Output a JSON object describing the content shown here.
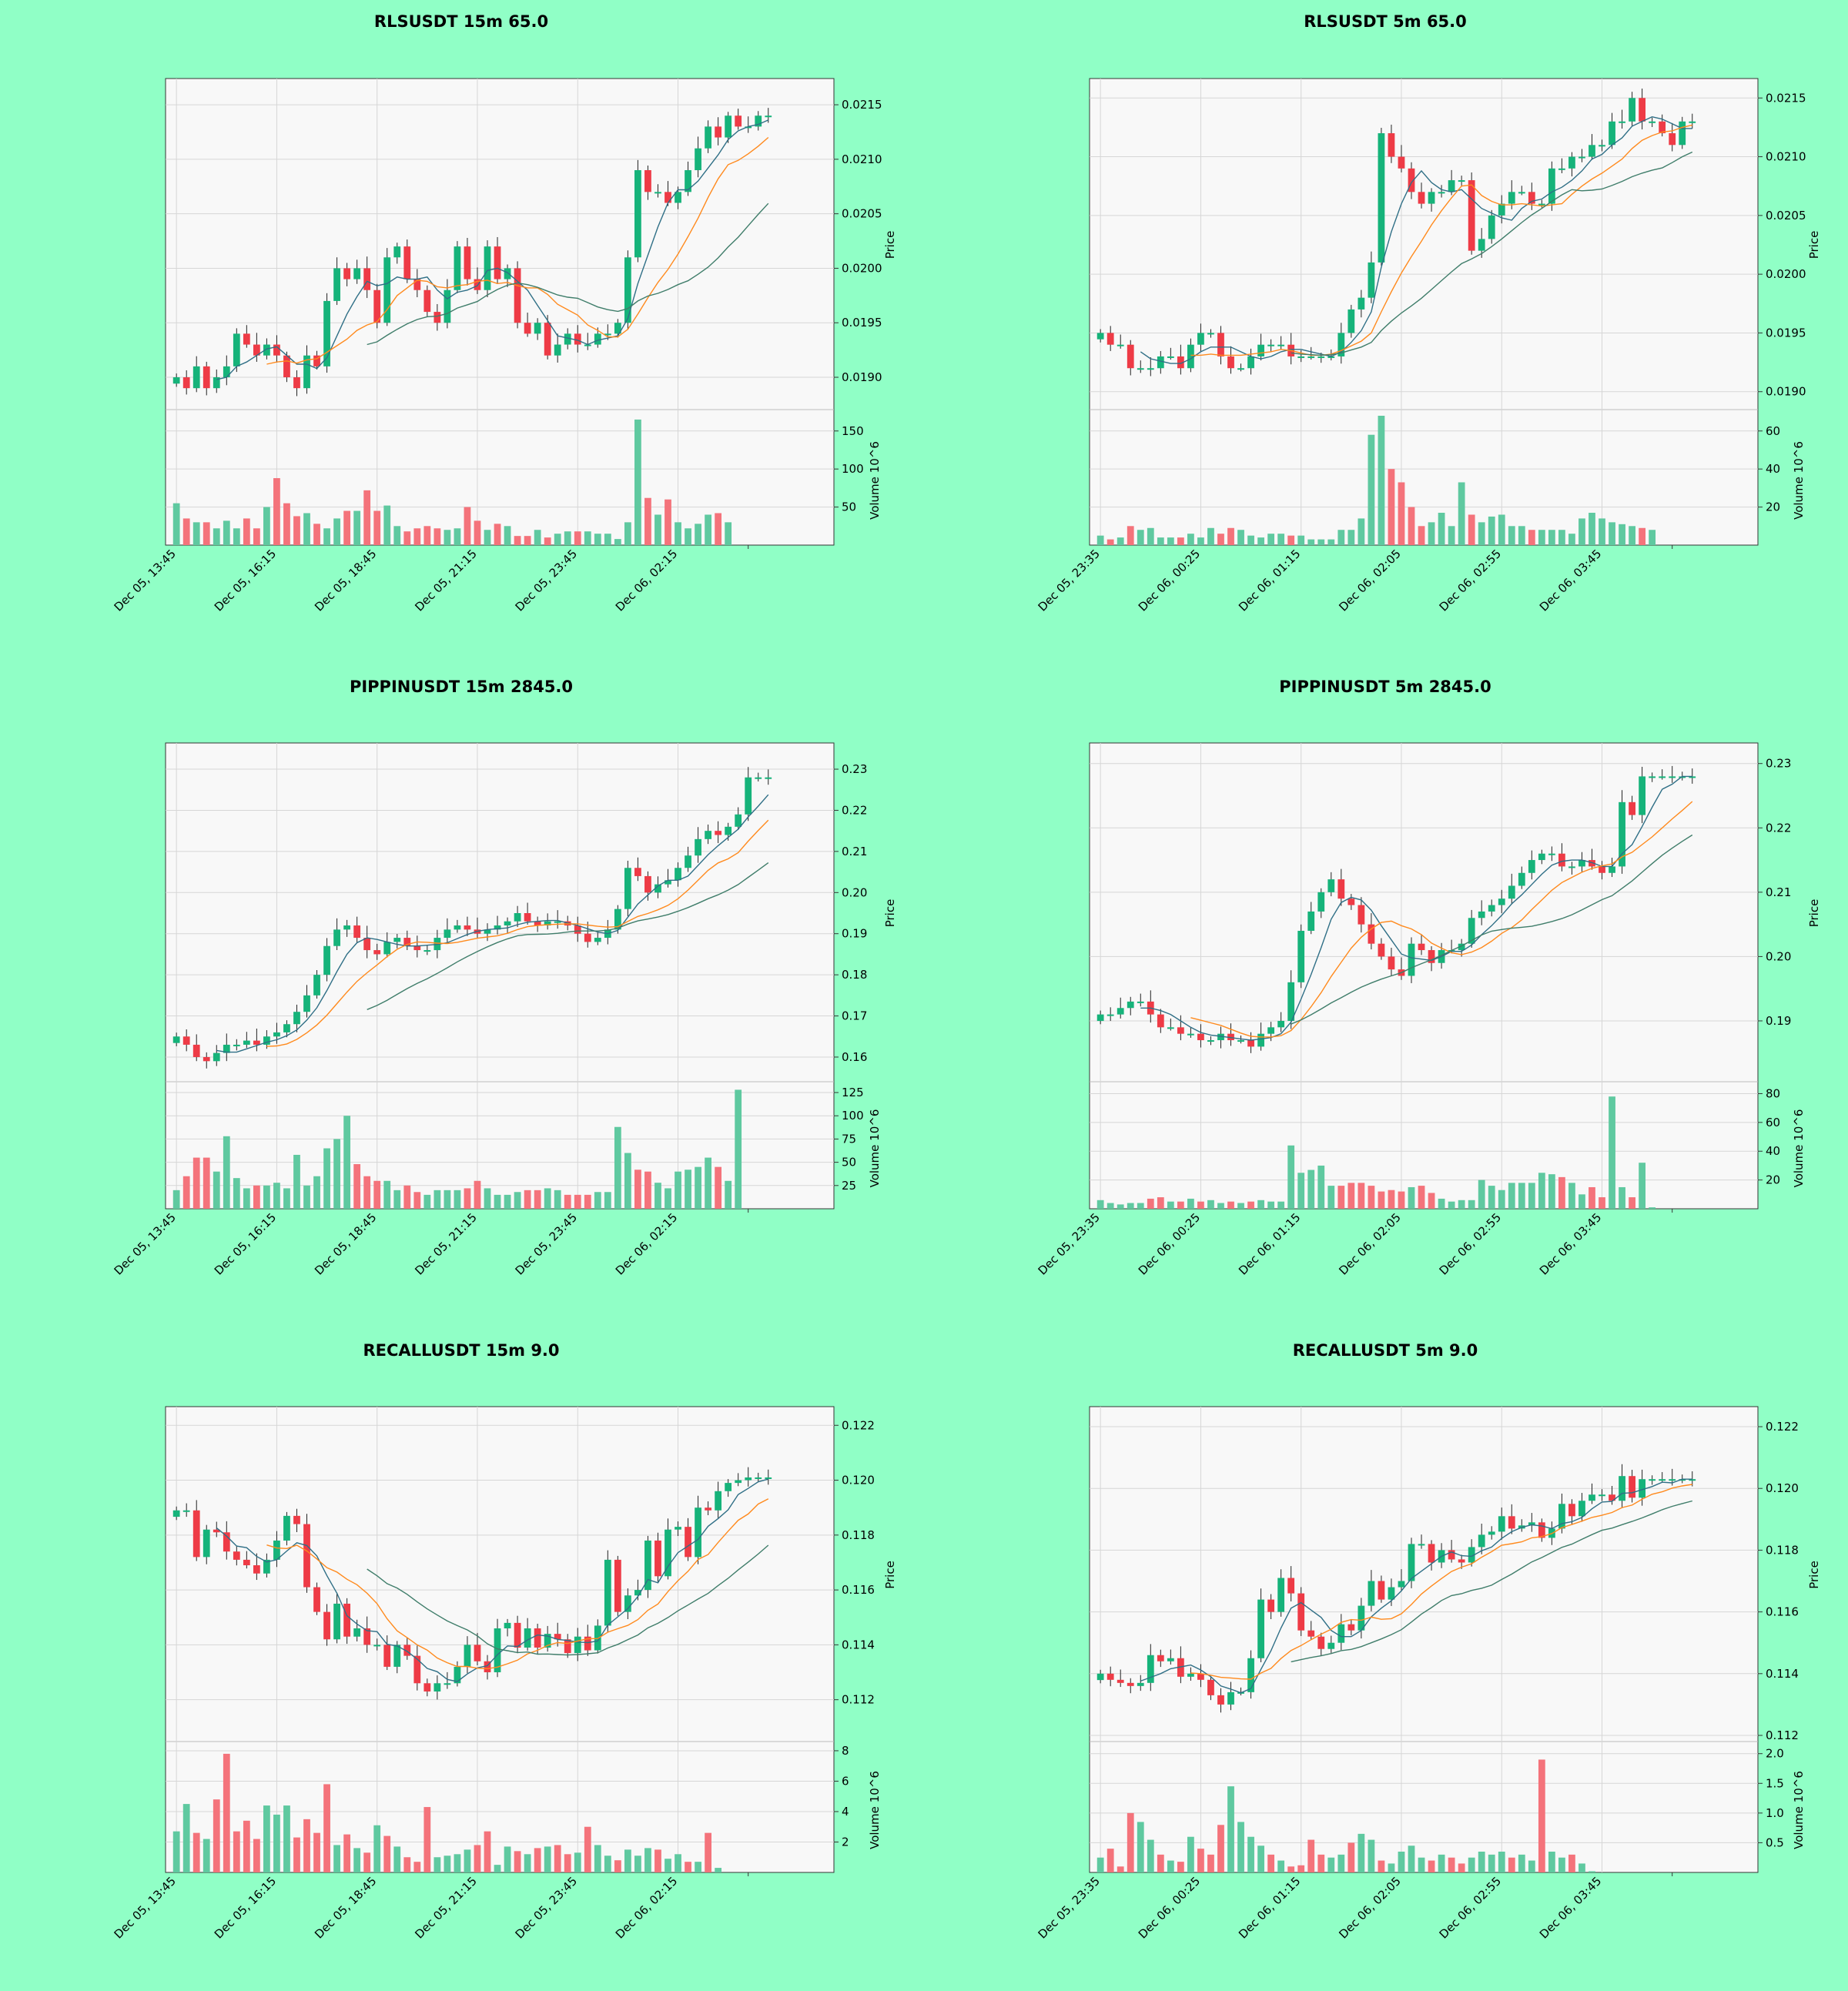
{
  "page": {
    "background": "#90ffc6"
  },
  "style": {
    "panel_bg": "#f8f8f8",
    "grid": "#d6d6d6",
    "up": "#16b37a",
    "down": "#ee3b46",
    "up_vol": "#5fc9a0",
    "down_vol": "#f4737b",
    "ma_short": "#2f6f86",
    "ma_mid": "#ff8a1d",
    "ma_long": "#3f7d6a"
  },
  "chart_data": [
    {
      "type": "candlestick",
      "title": "RLSUSDT 15m 65.0",
      "ylabel": "Price",
      "vol_label": "Volume  10^6",
      "x_ticks": [
        "Dec 05, 13:45",
        "Dec 05, 16:15",
        "Dec 05, 18:45",
        "Dec 05, 21:15",
        "Dec 05, 23:45",
        "Dec 06, 02:15"
      ],
      "price_ticks": [
        0.019,
        0.0195,
        0.02,
        0.0205,
        0.021,
        0.0215
      ],
      "price_tick_labels": [
        "0.0190",
        "0.0195",
        "0.0200",
        "0.0205",
        "0.0210",
        "0.0215"
      ],
      "ylim": [
        0.01876,
        0.02167
      ],
      "vol_ticks": [
        50,
        100,
        150
      ],
      "vol_tick_labels": [
        "50",
        "100",
        "150"
      ],
      "vol_max": 170,
      "n": 60,
      "closes": [
        0.019,
        0.0189,
        0.0191,
        0.0189,
        0.019,
        0.0191,
        0.0194,
        0.0193,
        0.0192,
        0.0193,
        0.0192,
        0.019,
        0.0189,
        0.0192,
        0.0191,
        0.0197,
        0.02,
        0.0199,
        0.02,
        0.0198,
        0.0195,
        0.0201,
        0.0202,
        0.0199,
        0.0198,
        0.0196,
        0.0195,
        0.0198,
        0.0202,
        0.0199,
        0.0198,
        0.0202,
        0.0199,
        0.02,
        0.0195,
        0.0194,
        0.0195,
        0.0192,
        0.0193,
        0.0194,
        0.0193,
        0.0193,
        0.0194,
        0.0194,
        0.0195,
        0.0201,
        0.0209,
        0.0207,
        0.0207,
        0.0206,
        0.0207,
        0.0209,
        0.0211,
        0.0213,
        0.0212,
        0.0214,
        0.0213,
        0.0213,
        0.0214,
        0.0214
      ],
      "volume": [
        55,
        35,
        30,
        30,
        22,
        32,
        22,
        35,
        22,
        50,
        88,
        55,
        38,
        42,
        28,
        22,
        35,
        45,
        45,
        72,
        45,
        52,
        25,
        18,
        22,
        25,
        22,
        20,
        22,
        50,
        32,
        20,
        28,
        25,
        12,
        12,
        20,
        10,
        15,
        18,
        18,
        18,
        15,
        15,
        8,
        30,
        165,
        62,
        40,
        60,
        30,
        22,
        28,
        40,
        42,
        30,
        0,
        0,
        0,
        0
      ]
    },
    {
      "type": "candlestick",
      "title": "RLSUSDT 5m 65.0",
      "ylabel": "Price",
      "vol_label": "Volume  10^6",
      "x_ticks": [
        "Dec 05, 23:35",
        "Dec 06, 00:25",
        "Dec 06, 01:15",
        "Dec 06, 02:05",
        "Dec 06, 02:55",
        "Dec 06, 03:45"
      ],
      "price_ticks": [
        0.019,
        0.0195,
        0.02,
        0.0205,
        0.021,
        0.0215
      ],
      "price_tick_labels": [
        "0.0190",
        "0.0195",
        "0.0200",
        "0.0205",
        "0.0210",
        "0.0215"
      ],
      "ylim": [
        0.0189,
        0.0216
      ],
      "vol_ticks": [
        20,
        40,
        60
      ],
      "vol_tick_labels": [
        "20",
        "40",
        "60"
      ],
      "vol_max": 68,
      "n": 60,
      "closes": [
        0.0195,
        0.0194,
        0.0194,
        0.0192,
        0.0192,
        0.0192,
        0.0193,
        0.0193,
        0.0192,
        0.0194,
        0.0195,
        0.0195,
        0.0193,
        0.0192,
        0.0192,
        0.0193,
        0.0194,
        0.0194,
        0.0194,
        0.0193,
        0.0193,
        0.0193,
        0.0193,
        0.0193,
        0.0195,
        0.0197,
        0.0198,
        0.0201,
        0.0212,
        0.021,
        0.0209,
        0.0207,
        0.0206,
        0.0207,
        0.0207,
        0.0208,
        0.0208,
        0.0202,
        0.0203,
        0.0205,
        0.0206,
        0.0207,
        0.0207,
        0.0206,
        0.0206,
        0.0209,
        0.0209,
        0.021,
        0.021,
        0.0211,
        0.0211,
        0.0213,
        0.0213,
        0.0215,
        0.0213,
        0.0213,
        0.0212,
        0.0211,
        0.0213,
        0.0213
      ],
      "volume": [
        5,
        3,
        4,
        10,
        8,
        9,
        4,
        4,
        4,
        6,
        4,
        9,
        6,
        9,
        8,
        5,
        4,
        6,
        6,
        5,
        5,
        3,
        3,
        3,
        8,
        8,
        14,
        58,
        68,
        40,
        33,
        20,
        10,
        12,
        17,
        10,
        33,
        16,
        12,
        15,
        16,
        10,
        10,
        8,
        8,
        8,
        8,
        6,
        14,
        17,
        14,
        12,
        11,
        10,
        9,
        8,
        0,
        0,
        0,
        0
      ]
    },
    {
      "type": "candlestick",
      "title": "PIPPINUSDT 15m 2845.0",
      "ylabel": "Price",
      "vol_label": "Volume  10^6",
      "x_ticks": [
        "Dec 05, 13:45",
        "Dec 05, 16:15",
        "Dec 05, 18:45",
        "Dec 05, 21:15",
        "Dec 05, 23:45",
        "Dec 06, 02:15"
      ],
      "price_ticks": [
        0.16,
        0.17,
        0.18,
        0.19,
        0.2,
        0.21,
        0.22,
        0.23
      ],
      "price_tick_labels": [
        "0.16",
        "0.17",
        "0.18",
        "0.19",
        "0.20",
        "0.21",
        "0.22",
        "0.23"
      ],
      "ylim": [
        0.1555,
        0.2345
      ],
      "vol_ticks": [
        25,
        50,
        75,
        100,
        125
      ],
      "vol_tick_labels": [
        "25",
        "50",
        "75",
        "100",
        "125"
      ],
      "vol_max": 130,
      "n": 60,
      "closes": [
        0.165,
        0.163,
        0.16,
        0.159,
        0.161,
        0.163,
        0.163,
        0.164,
        0.163,
        0.165,
        0.166,
        0.168,
        0.171,
        0.175,
        0.18,
        0.187,
        0.191,
        0.192,
        0.189,
        0.186,
        0.185,
        0.188,
        0.189,
        0.187,
        0.186,
        0.186,
        0.189,
        0.191,
        0.192,
        0.191,
        0.19,
        0.191,
        0.192,
        0.193,
        0.195,
        0.193,
        0.192,
        0.193,
        0.193,
        0.192,
        0.19,
        0.188,
        0.189,
        0.191,
        0.196,
        0.206,
        0.204,
        0.2,
        0.202,
        0.203,
        0.206,
        0.209,
        0.213,
        0.215,
        0.214,
        0.216,
        0.219,
        0.228,
        0.228,
        0.228
      ],
      "volume": [
        20,
        35,
        55,
        55,
        40,
        78,
        33,
        22,
        25,
        25,
        28,
        22,
        58,
        25,
        35,
        65,
        75,
        100,
        48,
        35,
        30,
        30,
        20,
        25,
        18,
        15,
        20,
        20,
        20,
        22,
        30,
        22,
        15,
        15,
        18,
        20,
        20,
        22,
        20,
        15,
        15,
        15,
        18,
        18,
        88,
        60,
        42,
        40,
        28,
        22,
        40,
        42,
        45,
        55,
        45,
        30,
        128,
        0,
        0,
        0
      ]
    },
    {
      "type": "candlestick",
      "title": "PIPPINUSDT 5m 2845.0",
      "ylabel": "Price",
      "vol_label": "Volume  10^6",
      "x_ticks": [
        "Dec 05, 23:35",
        "Dec 06, 00:25",
        "Dec 06, 01:15",
        "Dec 06, 02:05",
        "Dec 06, 02:55",
        "Dec 06, 03:45"
      ],
      "price_ticks": [
        0.19,
        0.2,
        0.21,
        0.22,
        0.23
      ],
      "price_tick_labels": [
        "0.19",
        "0.20",
        "0.21",
        "0.22",
        "0.23"
      ],
      "ylim": [
        0.1815,
        0.232
      ],
      "vol_ticks": [
        20,
        40,
        60,
        80
      ],
      "vol_tick_labels": [
        "20",
        "40",
        "60",
        "80"
      ],
      "vol_max": 84,
      "n": 60,
      "closes": [
        0.191,
        0.191,
        0.192,
        0.193,
        0.193,
        0.191,
        0.189,
        0.189,
        0.188,
        0.188,
        0.187,
        0.187,
        0.188,
        0.187,
        0.187,
        0.186,
        0.188,
        0.189,
        0.19,
        0.196,
        0.204,
        0.207,
        0.21,
        0.212,
        0.209,
        0.208,
        0.205,
        0.202,
        0.2,
        0.198,
        0.197,
        0.202,
        0.201,
        0.199,
        0.201,
        0.201,
        0.202,
        0.206,
        0.207,
        0.208,
        0.209,
        0.211,
        0.213,
        0.215,
        0.216,
        0.216,
        0.214,
        0.214,
        0.215,
        0.214,
        0.213,
        0.214,
        0.224,
        0.222,
        0.228,
        0.228,
        0.228,
        0.228,
        0.228,
        0.228
      ],
      "volume": [
        6,
        4,
        3,
        4,
        4,
        7,
        8,
        5,
        5,
        7,
        5,
        6,
        4,
        5,
        4,
        5,
        6,
        5,
        5,
        44,
        25,
        27,
        30,
        16,
        16,
        18,
        18,
        16,
        12,
        13,
        12,
        15,
        16,
        11,
        7,
        5,
        6,
        6,
        20,
        16,
        13,
        18,
        18,
        18,
        25,
        24,
        22,
        18,
        10,
        15,
        8,
        78,
        15,
        8,
        32,
        1,
        0,
        0,
        0,
        0
      ]
    },
    {
      "type": "candlestick",
      "title": "RECALLUSDT 15m 9.0",
      "ylabel": "Price",
      "vol_label": "Volume  10^6",
      "x_ticks": [
        "Dec 05, 13:45",
        "Dec 05, 16:15",
        "Dec 05, 18:45",
        "Dec 05, 21:15",
        "Dec 05, 23:45",
        "Dec 06, 02:15"
      ],
      "price_ticks": [
        0.112,
        0.114,
        0.116,
        0.118,
        0.12,
        0.122
      ],
      "price_tick_labels": [
        "0.112",
        "0.114",
        "0.116",
        "0.118",
        "0.120",
        "0.122"
      ],
      "ylim": [
        0.1107,
        0.1224
      ],
      "vol_ticks": [
        2,
        4,
        6,
        8
      ],
      "vol_tick_labels": [
        "2",
        "4",
        "6",
        "8"
      ],
      "vol_max": 8.2,
      "n": 60,
      "closes": [
        0.1189,
        0.1189,
        0.1172,
        0.1182,
        0.1181,
        0.1174,
        0.1171,
        0.1169,
        0.1166,
        0.1171,
        0.1178,
        0.1187,
        0.1184,
        0.1161,
        0.1152,
        0.1142,
        0.1155,
        0.1143,
        0.1146,
        0.114,
        0.114,
        0.1132,
        0.114,
        0.1136,
        0.1126,
        0.1123,
        0.1126,
        0.1126,
        0.1132,
        0.114,
        0.1134,
        0.113,
        0.1146,
        0.1148,
        0.1139,
        0.1146,
        0.1139,
        0.1144,
        0.1142,
        0.1137,
        0.1143,
        0.1138,
        0.1147,
        0.1171,
        0.1152,
        0.1158,
        0.116,
        0.1178,
        0.1165,
        0.1182,
        0.1183,
        0.1172,
        0.119,
        0.1189,
        0.1196,
        0.1199,
        0.12,
        0.1201,
        0.1201,
        0.1201
      ],
      "volume": [
        2.7,
        4.5,
        2.6,
        2.2,
        4.8,
        7.8,
        2.7,
        3.4,
        2.2,
        4.4,
        3.8,
        4.4,
        2.3,
        3.5,
        2.6,
        5.8,
        1.8,
        2.5,
        1.6,
        1.3,
        3.1,
        2.4,
        1.7,
        1.0,
        0.7,
        4.3,
        1.0,
        1.1,
        1.2,
        1.5,
        1.8,
        2.7,
        0.5,
        1.7,
        1.4,
        1.2,
        1.6,
        1.7,
        1.8,
        1.2,
        1.3,
        3.0,
        1.8,
        1.1,
        0.8,
        1.5,
        1.1,
        1.6,
        1.5,
        0.9,
        1.2,
        0.7,
        0.7,
        2.6,
        0.3,
        0,
        0,
        0,
        0,
        0
      ]
    },
    {
      "type": "candlestick",
      "title": "RECALLUSDT 5m 9.0",
      "ylabel": "Price",
      "vol_label": "Volume  10^6",
      "x_ticks": [
        "Dec 05, 23:35",
        "Dec 06, 00:25",
        "Dec 06, 01:15",
        "Dec 06, 02:05",
        "Dec 06, 02:55",
        "Dec 06, 03:45"
      ],
      "price_ticks": [
        0.112,
        0.114,
        0.116,
        0.118,
        0.12,
        0.122
      ],
      "price_tick_labels": [
        "0.112",
        "0.114",
        "0.116",
        "0.118",
        "0.120",
        "0.122"
      ],
      "ylim": [
        0.112,
        0.1224
      ],
      "vol_ticks": [
        0.5,
        1.0,
        1.5,
        2.0
      ],
      "vol_tick_labels": [
        "0.5",
        "1.0",
        "1.5",
        "2.0"
      ],
      "vol_max": 2.1,
      "n": 60,
      "closes": [
        0.114,
        0.1138,
        0.1137,
        0.1136,
        0.1137,
        0.1146,
        0.1144,
        0.1145,
        0.1139,
        0.114,
        0.1138,
        0.1133,
        0.113,
        0.1134,
        0.1134,
        0.1145,
        0.1164,
        0.116,
        0.1171,
        0.1166,
        0.1154,
        0.1152,
        0.1148,
        0.115,
        0.1156,
        0.1154,
        0.1162,
        0.117,
        0.1164,
        0.1168,
        0.117,
        0.1182,
        0.1182,
        0.1176,
        0.118,
        0.1177,
        0.1176,
        0.1181,
        0.1185,
        0.1186,
        0.1191,
        0.1187,
        0.1188,
        0.1189,
        0.1184,
        0.1187,
        0.1195,
        0.1191,
        0.1196,
        0.1198,
        0.1198,
        0.1196,
        0.1204,
        0.1197,
        0.1203,
        0.1203,
        0.1203,
        0.1203,
        0.1203,
        0.1203
      ],
      "volume": [
        0.25,
        0.4,
        0.1,
        1.0,
        0.85,
        0.55,
        0.3,
        0.2,
        0.18,
        0.6,
        0.4,
        0.3,
        0.8,
        1.45,
        0.85,
        0.6,
        0.45,
        0.3,
        0.2,
        0.1,
        0.12,
        0.55,
        0.3,
        0.25,
        0.3,
        0.5,
        0.65,
        0.55,
        0.2,
        0.15,
        0.35,
        0.45,
        0.25,
        0.2,
        0.3,
        0.25,
        0.15,
        0.25,
        0.35,
        0.3,
        0.35,
        0.25,
        0.3,
        0.2,
        1.9,
        0.35,
        0.25,
        0.3,
        0.15,
        0.02,
        0,
        0,
        0,
        0,
        0,
        0,
        0,
        0,
        0,
        0
      ]
    }
  ]
}
